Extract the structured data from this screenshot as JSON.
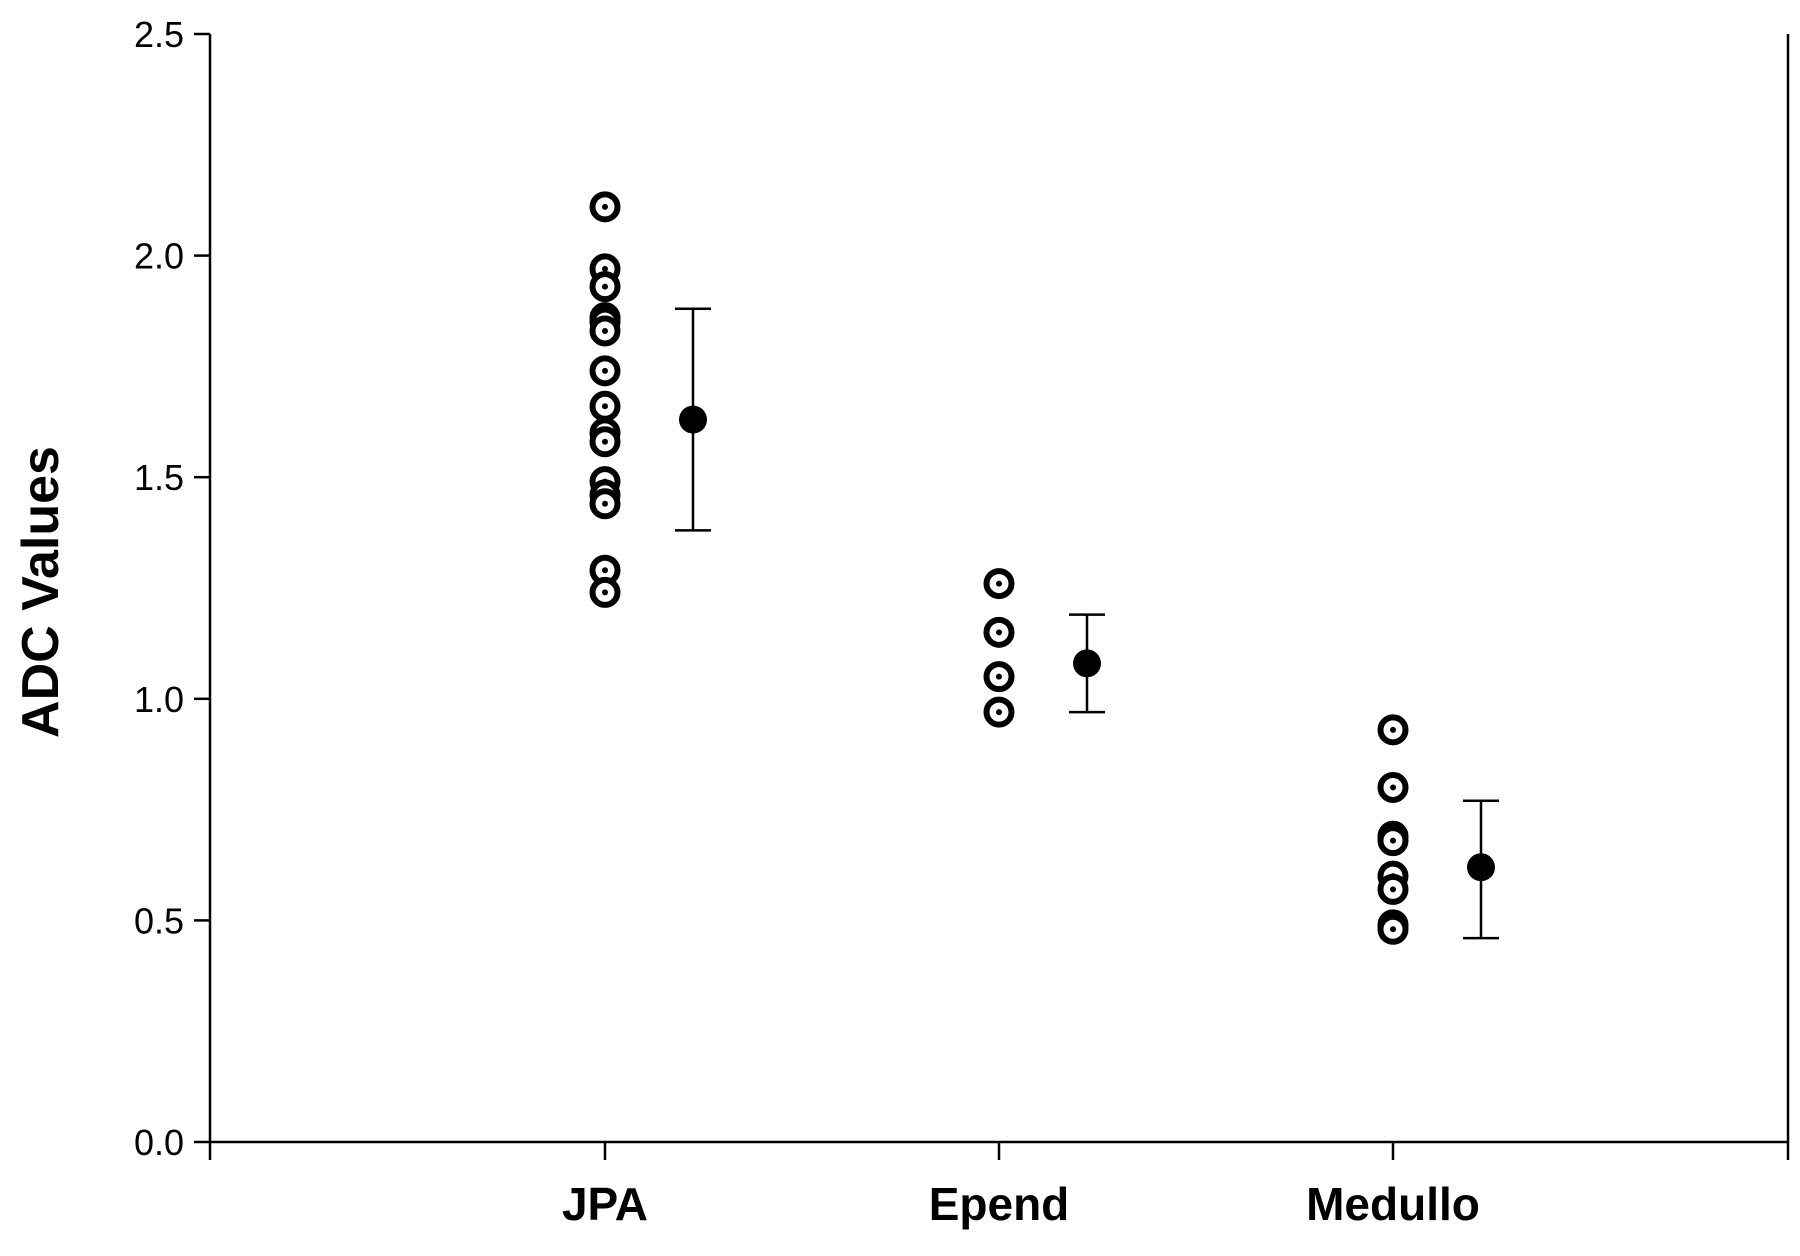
{
  "chart_data": {
    "type": "scatter",
    "title": "",
    "xlabel": "",
    "ylabel": "ADC Values",
    "ylim": [
      0,
      2.5
    ],
    "yticks": [
      "0.0",
      "0.5",
      "1.0",
      "1.5",
      "2.0",
      "2.5"
    ],
    "categories": [
      "JPA",
      "Epend",
      "Medullo"
    ],
    "grid": false,
    "legend": "none",
    "colors": {
      "axis": "#000000",
      "marker": "#000000",
      "background": "#ffffff"
    },
    "individual_points": [
      {
        "category": "JPA",
        "values": [
          2.11,
          1.97,
          1.93,
          1.86,
          1.85,
          1.83,
          1.74,
          1.66,
          1.6,
          1.58,
          1.49,
          1.46,
          1.44,
          1.29,
          1.24
        ]
      },
      {
        "category": "Epend",
        "values": [
          1.26,
          1.15,
          1.05,
          0.97
        ]
      },
      {
        "category": "Medullo",
        "values": [
          0.93,
          0.8,
          0.69,
          0.68,
          0.6,
          0.57,
          0.49,
          0.48
        ]
      }
    ],
    "summary": [
      {
        "category": "JPA",
        "mean": 1.63,
        "upper": 1.88,
        "lower": 1.38
      },
      {
        "category": "Epend",
        "mean": 1.08,
        "upper": 1.19,
        "lower": 0.97
      },
      {
        "category": "Medullo",
        "mean": 0.62,
        "upper": 0.77,
        "lower": 0.46
      }
    ]
  }
}
